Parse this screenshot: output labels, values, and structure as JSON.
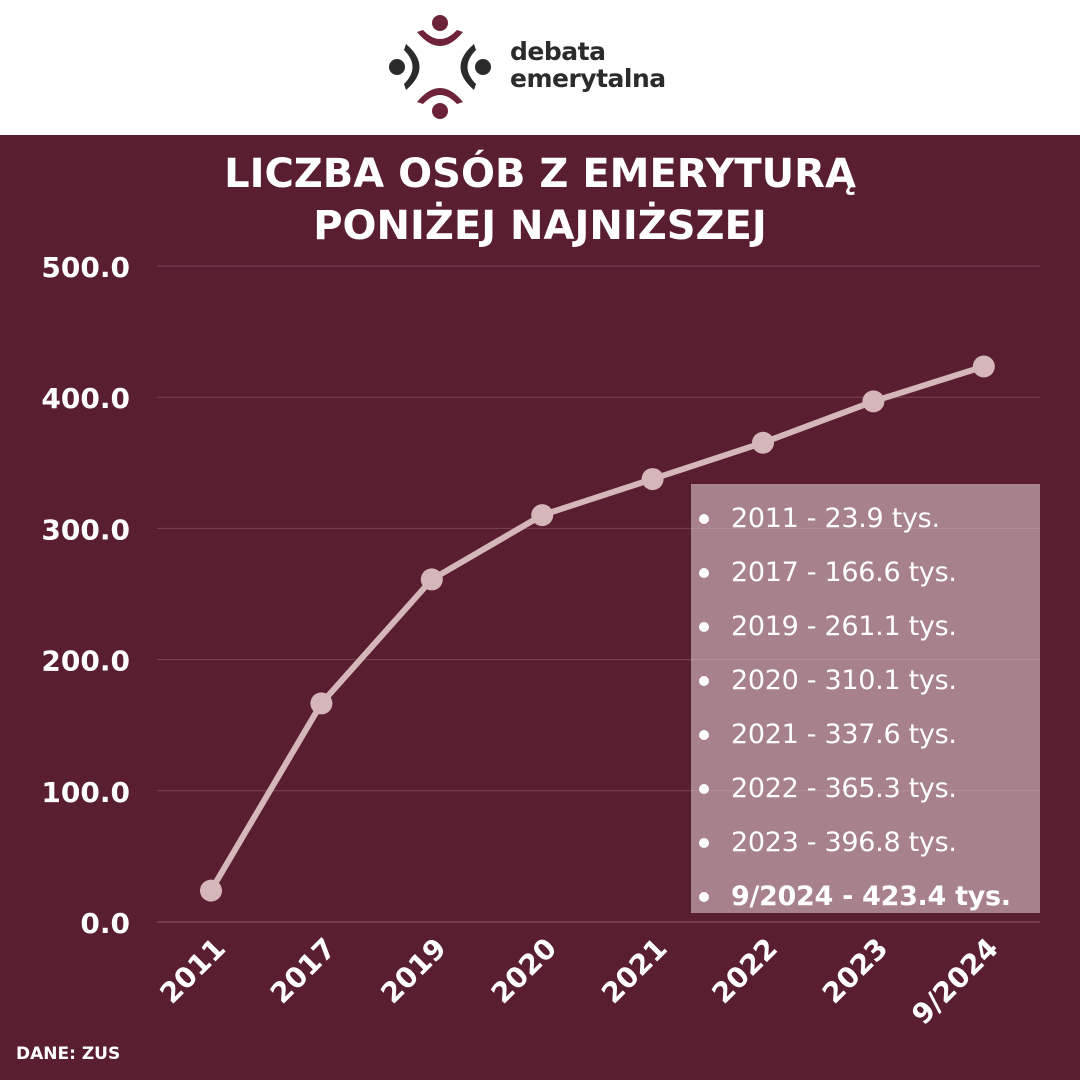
{
  "brand": {
    "name_line1": "debata",
    "name_line2": "emerytalna",
    "logo_icon": "four-people-circle-icon",
    "colors": {
      "primary": "#5a1e31",
      "dark": "#2b2b2b"
    }
  },
  "title": {
    "line1": "LICZBA OSÓB Z EMERYTURĄ",
    "line2": "PONIŻEJ NAJNIŻSZEJ"
  },
  "source": "DANE: ZUS",
  "legend": {
    "items": [
      {
        "label": "2011 - 23.9 tys.",
        "bold": false
      },
      {
        "label": "2017 - 166.6 tys.",
        "bold": false
      },
      {
        "label": "2019 - 261.1 tys.",
        "bold": false
      },
      {
        "label": "2020 - 310.1 tys.",
        "bold": false
      },
      {
        "label": "2021 - 337.6 tys.",
        "bold": false
      },
      {
        "label": "2022 - 365.3 tys.",
        "bold": false
      },
      {
        "label": "2023 - 396.8 tys.",
        "bold": false
      },
      {
        "label": "9/2024 - 423.4 tys.",
        "bold": true
      }
    ]
  },
  "chart_data": {
    "type": "line",
    "title": "LICZBA OSÓB Z EMERYTURĄ PONIŻEJ NAJNIŻSZEJ",
    "categories": [
      "2011",
      "2017",
      "2019",
      "2020",
      "2021",
      "2022",
      "2023",
      "9/2024"
    ],
    "series": [
      {
        "values": [
          23.9,
          166.6,
          261.1,
          310.1,
          337.6,
          365.3,
          396.8,
          423.4
        ]
      }
    ],
    "ylim": [
      0,
      500
    ],
    "yticks": [
      "0.0",
      "100.0",
      "200.0",
      "300.0",
      "400.0",
      "500.0"
    ],
    "grid": true,
    "line_color": "#d6b7b9",
    "grid_color": "#7a4656"
  }
}
